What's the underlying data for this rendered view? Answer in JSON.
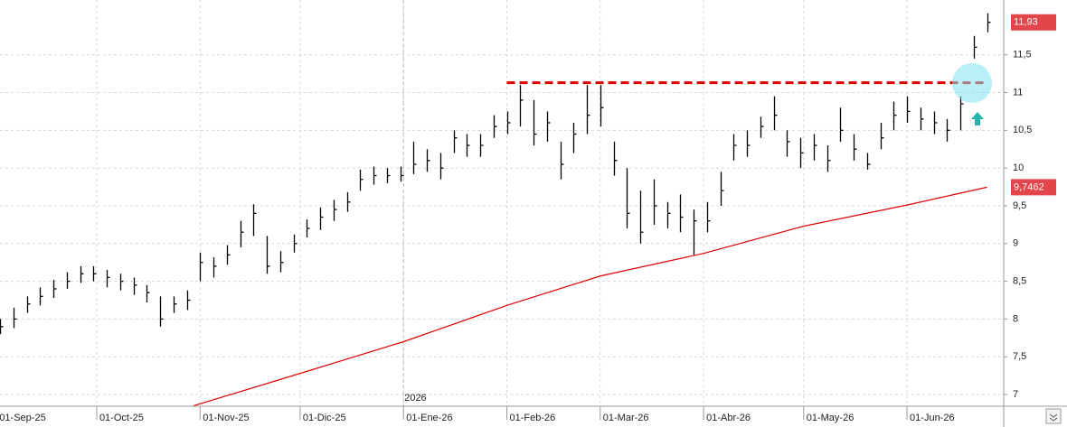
{
  "chart_data": {
    "type": "ohlc",
    "color": "#000000",
    "x": [
      "2025-09-02",
      "2025-09-06",
      "2025-09-10",
      "2025-09-14",
      "2025-09-18",
      "2025-09-22",
      "2025-09-26",
      "2025-09-30",
      "2025-10-04",
      "2025-10-08",
      "2025-10-12",
      "2025-10-16",
      "2025-10-20",
      "2025-10-24",
      "2025-10-28",
      "2025-11-01",
      "2025-11-05",
      "2025-11-09",
      "2025-11-13",
      "2025-11-17",
      "2025-11-21",
      "2025-11-25",
      "2025-11-29",
      "2025-12-03",
      "2025-12-07",
      "2025-12-11",
      "2025-12-15",
      "2025-12-19",
      "2025-12-23",
      "2025-12-27",
      "2025-12-31",
      "2026-01-04",
      "2026-01-08",
      "2026-01-12",
      "2026-01-16",
      "2026-01-20",
      "2026-01-24",
      "2026-01-28",
      "2026-02-01",
      "2026-02-05",
      "2026-02-09",
      "2026-02-13",
      "2026-02-17",
      "2026-02-21",
      "2026-02-25",
      "2026-03-01",
      "2026-03-05",
      "2026-03-09",
      "2026-03-13",
      "2026-03-17",
      "2026-03-21",
      "2026-03-25",
      "2026-03-29",
      "2026-04-02",
      "2026-04-06",
      "2026-04-10",
      "2026-04-14",
      "2026-04-18",
      "2026-04-22",
      "2026-04-26",
      "2026-04-30",
      "2026-05-04",
      "2026-05-08",
      "2026-05-12",
      "2026-05-16",
      "2026-05-20",
      "2026-05-24",
      "2026-05-28",
      "2026-06-01",
      "2026-06-05",
      "2026-06-09",
      "2026-06-13",
      "2026-06-17",
      "2026-06-21",
      "2026-06-25"
    ],
    "high": [
      8.0,
      8.15,
      8.3,
      8.42,
      8.52,
      8.62,
      8.7,
      8.7,
      8.65,
      8.6,
      8.55,
      8.45,
      8.3,
      8.3,
      8.38,
      8.88,
      8.82,
      8.98,
      9.3,
      9.52,
      9.1,
      8.9,
      9.12,
      9.32,
      9.48,
      9.58,
      9.68,
      9.98,
      10.02,
      10.0,
      10.02,
      10.35,
      10.25,
      10.2,
      10.5,
      10.45,
      10.45,
      10.7,
      10.75,
      11.1,
      10.9,
      10.75,
      10.35,
      10.6,
      11.1,
      11.1,
      10.35,
      10.0,
      9.7,
      9.85,
      9.55,
      9.65,
      9.45,
      9.55,
      9.95,
      10.45,
      10.5,
      10.68,
      10.95,
      10.5,
      10.4,
      10.45,
      10.3,
      10.8,
      10.45,
      10.2,
      10.6,
      10.88,
      10.95,
      10.8,
      10.75,
      10.65,
      10.95,
      11.75,
      12.05
    ],
    "low": [
      7.8,
      7.88,
      8.08,
      8.18,
      8.28,
      8.4,
      8.48,
      8.5,
      8.42,
      8.38,
      8.32,
      8.22,
      7.9,
      8.08,
      8.12,
      8.5,
      8.55,
      8.72,
      8.95,
      9.1,
      8.6,
      8.62,
      8.88,
      9.08,
      9.18,
      9.3,
      9.42,
      9.7,
      9.78,
      9.8,
      9.82,
      9.92,
      9.95,
      9.85,
      10.2,
      10.15,
      10.15,
      10.4,
      10.45,
      10.55,
      10.3,
      10.35,
      9.85,
      10.2,
      10.45,
      10.55,
      9.9,
      9.2,
      9.0,
      9.25,
      9.2,
      9.15,
      8.85,
      9.15,
      9.5,
      10.1,
      10.15,
      10.4,
      10.5,
      10.15,
      10.0,
      10.1,
      9.95,
      10.35,
      10.1,
      9.98,
      10.25,
      10.5,
      10.6,
      10.5,
      10.45,
      10.35,
      10.5,
      11.45,
      11.8
    ],
    "close": [
      7.9,
      8.0,
      8.2,
      8.3,
      8.4,
      8.5,
      8.6,
      8.6,
      8.55,
      8.5,
      8.45,
      8.35,
      8.0,
      8.2,
      8.25,
      8.75,
      8.7,
      8.85,
      9.15,
      9.4,
      8.7,
      8.75,
      9.0,
      9.2,
      9.35,
      9.45,
      9.55,
      9.85,
      9.9,
      9.9,
      9.9,
      10.05,
      10.1,
      10.0,
      10.4,
      10.3,
      10.3,
      10.55,
      10.6,
      10.9,
      10.45,
      10.6,
      10.05,
      10.45,
      10.7,
      10.8,
      10.1,
      9.4,
      9.15,
      9.5,
      9.4,
      9.35,
      9.3,
      9.3,
      9.7,
      10.3,
      10.3,
      10.55,
      10.7,
      10.35,
      10.2,
      10.3,
      10.1,
      10.5,
      10.25,
      10.05,
      10.4,
      10.7,
      10.75,
      10.65,
      10.6,
      10.5,
      10.85,
      11.6,
      11.93
    ],
    "moving_average": {
      "color": "#e00000",
      "x": [
        "2025-10-30",
        "2025-12-01",
        "2026-01-01",
        "2026-02-01",
        "2026-03-01",
        "2026-04-01",
        "2026-05-01",
        "2026-06-01",
        "2026-06-25"
      ],
      "values": [
        6.85,
        7.28,
        7.7,
        8.18,
        8.57,
        8.87,
        9.23,
        9.51,
        9.7462
      ]
    },
    "resistance": {
      "color": "#e00000",
      "x": [
        "2026-02-01",
        "2026-06-25"
      ],
      "value": 11.13
    },
    "last_price_label": {
      "value": 11.93,
      "label": "11,93"
    },
    "ma_label": {
      "value": 9.7462,
      "label": "9,7462"
    },
    "year_label": {
      "x": "2026-01-01",
      "label": "2026"
    },
    "xlim": [
      "2025-09-02",
      "2026-06-30"
    ],
    "xticks": [
      {
        "value": "2025-09-01",
        "label": "01-Sep-25"
      },
      {
        "value": "2025-10-01",
        "label": "01-Oct-25"
      },
      {
        "value": "2025-11-01",
        "label": "01-Nov-25"
      },
      {
        "value": "2025-12-01",
        "label": "01-Dic-25"
      },
      {
        "value": "2026-01-01",
        "label": "01-Ene-26"
      },
      {
        "value": "2026-02-01",
        "label": "01-Feb-26"
      },
      {
        "value": "2026-03-01",
        "label": "01-Mar-26"
      },
      {
        "value": "2026-04-01",
        "label": "01-Abr-26"
      },
      {
        "value": "2026-05-01",
        "label": "01-May-26"
      },
      {
        "value": "2026-06-01",
        "label": "01-Jun-26"
      }
    ],
    "ylim": [
      6.845,
      12.226
    ],
    "yticks": [
      7,
      {
        "value": 7.5,
        "label": "7,5"
      },
      8,
      {
        "value": 8.5,
        "label": "8,5"
      },
      9,
      {
        "value": 9.5,
        "label": "9,5"
      },
      10,
      {
        "value": 10.5,
        "label": "10,5"
      },
      11,
      {
        "value": 11.5,
        "label": "11,5"
      }
    ],
    "grid": true
  }
}
